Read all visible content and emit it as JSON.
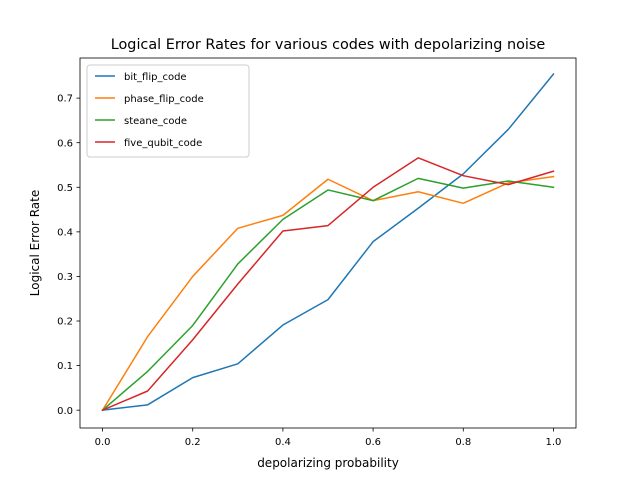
{
  "chart_data": {
    "type": "line",
    "title": "Logical Error Rates for various codes with depolarizing noise",
    "xlabel": "depolarizing probability",
    "ylabel": "Logical Error Rate",
    "xlim": [
      -0.05,
      1.05
    ],
    "ylim": [
      -0.04,
      0.79
    ],
    "x_ticks": [
      0.0,
      0.2,
      0.4,
      0.6,
      0.8,
      1.0
    ],
    "y_ticks": [
      0.0,
      0.1,
      0.2,
      0.3,
      0.4,
      0.5,
      0.6,
      0.7
    ],
    "x_tick_labels": [
      "0.0",
      "0.2",
      "0.4",
      "0.6",
      "0.8",
      "1.0"
    ],
    "y_tick_labels": [
      "0.0",
      "0.1",
      "0.2",
      "0.3",
      "0.4",
      "0.5",
      "0.6",
      "0.7"
    ],
    "grid": false,
    "legend_position": "upper-left",
    "x": [
      0.0,
      0.1,
      0.2,
      0.3,
      0.4,
      0.5,
      0.6,
      0.7,
      0.8,
      0.9,
      1.0
    ],
    "series": [
      {
        "name": "bit_flip_code",
        "color": "#1f77b4",
        "values": [
          0.0,
          0.012,
          0.073,
          0.104,
          0.191,
          0.248,
          0.378,
          0.453,
          0.53,
          0.63,
          0.754
        ]
      },
      {
        "name": "phase_flip_code",
        "color": "#ff7f0e",
        "values": [
          0.0,
          0.165,
          0.3,
          0.408,
          0.437,
          0.518,
          0.47,
          0.49,
          0.464,
          0.51,
          0.524
        ]
      },
      {
        "name": "steane_code",
        "color": "#2ca02c",
        "values": [
          0.0,
          0.087,
          0.19,
          0.328,
          0.428,
          0.494,
          0.47,
          0.52,
          0.498,
          0.514,
          0.5
        ]
      },
      {
        "name": "five_qubit_code",
        "color": "#d62728",
        "values": [
          0.0,
          0.043,
          0.158,
          0.283,
          0.402,
          0.414,
          0.5,
          0.566,
          0.526,
          0.506,
          0.536
        ]
      }
    ]
  }
}
